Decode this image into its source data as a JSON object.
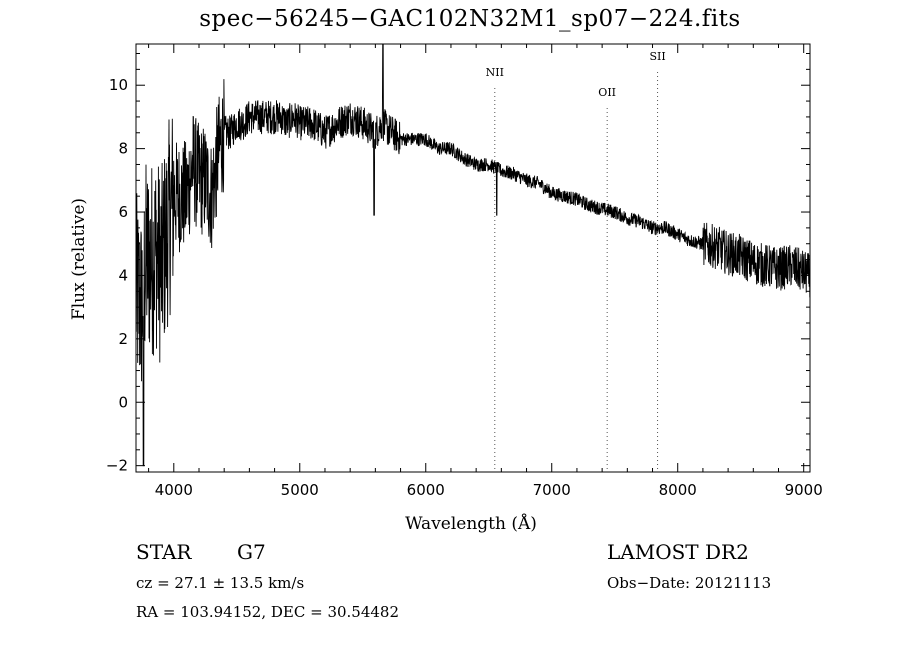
{
  "chart_data": {
    "type": "line",
    "title": "spec−56245−GAC102N32M1_sp07−224.fits",
    "xlabel": "Wavelength (Å)",
    "ylabel": "Flux (relative)",
    "xlim": [
      3700,
      9050
    ],
    "ylim": [
      -2.2,
      11.3
    ],
    "x_ticks": [
      4000,
      5000,
      6000,
      7000,
      8000,
      9000
    ],
    "y_ticks": [
      -2,
      0,
      2,
      4,
      6,
      8,
      10
    ],
    "grid": false,
    "series": [
      {
        "x": [
          3700,
          3740,
          3780,
          3820,
          3860,
          3900,
          3950,
          4000,
          4050,
          4100,
          4150,
          4200,
          4250,
          4300,
          4350,
          4400,
          4450,
          4500,
          4550,
          4600,
          4650,
          4700,
          4750,
          4800,
          4850,
          4900,
          4950,
          5000,
          5100,
          5200,
          5300,
          5400,
          5500,
          5600,
          5650,
          5700,
          5800,
          5900,
          6000,
          6100,
          6200,
          6300,
          6400,
          6500,
          6600,
          6700,
          6800,
          6900,
          7000,
          7100,
          7200,
          7300,
          7400,
          7500,
          7600,
          7700,
          7800,
          7900,
          8000,
          8100,
          8200,
          8300,
          8400,
          8500,
          8600,
          8700,
          8800,
          8900,
          9000,
          9050
        ],
        "y": [
          3.5,
          3.0,
          4.5,
          4.5,
          4.8,
          4.2,
          5.5,
          6.5,
          6.5,
          6.5,
          7.5,
          7.0,
          7.0,
          6.5,
          7.8,
          8.5,
          8.5,
          8.8,
          8.8,
          9.0,
          9.0,
          9.0,
          9.0,
          9.0,
          9.0,
          8.8,
          9.0,
          8.8,
          8.8,
          8.5,
          8.8,
          9.0,
          8.8,
          8.5,
          8.8,
          8.6,
          8.3,
          8.3,
          8.3,
          8.0,
          8.0,
          7.7,
          7.5,
          7.5,
          7.3,
          7.2,
          7.0,
          6.9,
          6.6,
          6.5,
          6.4,
          6.2,
          6.1,
          6.0,
          5.8,
          5.7,
          5.5,
          5.5,
          5.3,
          5.1,
          5.0,
          4.9,
          4.7,
          4.6,
          4.4,
          4.3,
          4.2,
          4.3,
          4.1,
          4.0
        ]
      }
    ],
    "lines": [
      {
        "label": "NII",
        "x": 6548
      },
      {
        "label": "OII",
        "x": 7440
      },
      {
        "label": "SII",
        "x": 7840
      }
    ]
  },
  "info": {
    "object_type": "STAR",
    "subclass": "G7",
    "survey": "LAMOST DR2",
    "redshift": "cz = 27.1 ± 13.5 km/s",
    "obs_date": "Obs−Date: 20121113",
    "coords": "RA = 103.94152, DEC =  30.54482"
  }
}
